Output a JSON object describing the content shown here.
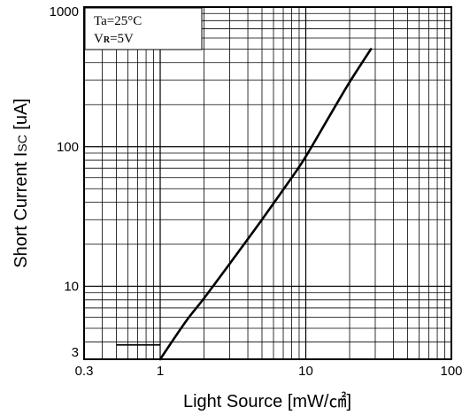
{
  "chart_data": {
    "type": "line",
    "title": "",
    "xlabel": "Light Source [mW/㎠]",
    "ylabel_main": "Short Current I",
    "ylabel_sub": "SC",
    "ylabel_unit": " [uA]",
    "xscale": "log",
    "yscale": "log",
    "xlim": [
      0.3,
      100
    ],
    "ylim": [
      3,
      1000
    ],
    "x_ticks": [
      0.3,
      1,
      10,
      100
    ],
    "x_tick_labels": [
      "0.3",
      "1",
      "10",
      "100"
    ],
    "y_ticks": [
      3,
      10,
      100,
      1000
    ],
    "y_tick_labels": [
      "3",
      "10",
      "100",
      "1000"
    ],
    "grid": true,
    "annotations": {
      "line1": "Ta=25°C",
      "line2_main": "V",
      "line2_sub": "R",
      "line2_rest": "=5V"
    },
    "series": [
      {
        "x": [
          1.0,
          1.5,
          2.0,
          3.0,
          5.0,
          8.0,
          10.0,
          15.0,
          20.0,
          28.0
        ],
        "values": [
          3.0,
          5.6,
          8.2,
          14.5,
          30,
          60,
          85,
          175,
          290,
          500
        ]
      }
    ],
    "reference_line": {
      "x": [
        0.5,
        1.0
      ],
      "y": [
        3.8,
        3.8
      ]
    }
  }
}
